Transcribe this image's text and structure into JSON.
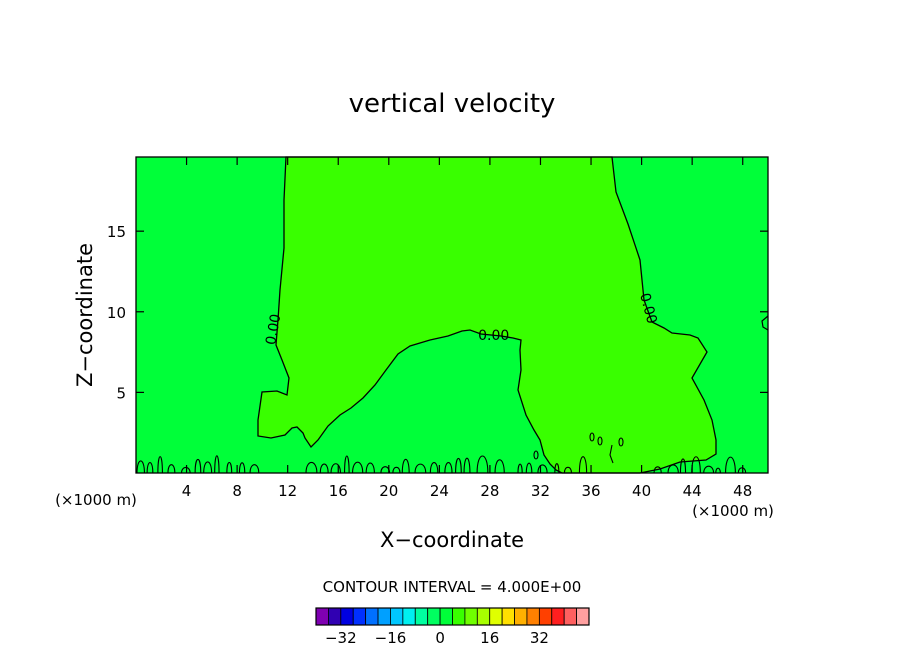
{
  "chart_data": {
    "type": "heatmap",
    "title": "vertical velocity",
    "xlabel": "X−coordinate",
    "ylabel": "Z−coordinate",
    "x_unit_left": "(×1000 m)",
    "x_unit_right": "(×1000 m)",
    "xlim": [
      0,
      50
    ],
    "ylim": [
      0,
      19.6
    ],
    "x_ticks": [
      4,
      8,
      12,
      16,
      20,
      24,
      28,
      32,
      36,
      40,
      44,
      48
    ],
    "y_ticks": [
      5,
      10,
      15
    ],
    "contour_labels": [
      {
        "text": "0.00",
        "x": 10.9,
        "z": 8.9,
        "angle": -80
      },
      {
        "text": "0.00",
        "x": 28.3,
        "z": 8.5,
        "angle": 0
      },
      {
        "text": "0.00",
        "x": 40.5,
        "z": 10.2,
        "angle": 75
      }
    ],
    "regions": [
      {
        "value": 0,
        "color": "#00ff39"
      },
      {
        "value": 2,
        "color": "#39ff00"
      }
    ],
    "contour_interval_text": "CONTOUR INTERVAL = 4.000E+00",
    "colorbar": {
      "colors": [
        "#7f00b2",
        "#3000b2",
        "#0000e0",
        "#0030ff",
        "#0070ff",
        "#00a0ff",
        "#00c8ff",
        "#00f0f0",
        "#00ffa0",
        "#00ff60",
        "#00ff39",
        "#39ff00",
        "#70ff00",
        "#a8ff00",
        "#e0ff00",
        "#ffe000",
        "#ffb000",
        "#ff8000",
        "#ff4000",
        "#ff1f1f",
        "#ff6060",
        "#ffa0a0"
      ],
      "tick_labels": [
        "−32",
        "−16",
        "0",
        "16",
        "32"
      ]
    }
  }
}
